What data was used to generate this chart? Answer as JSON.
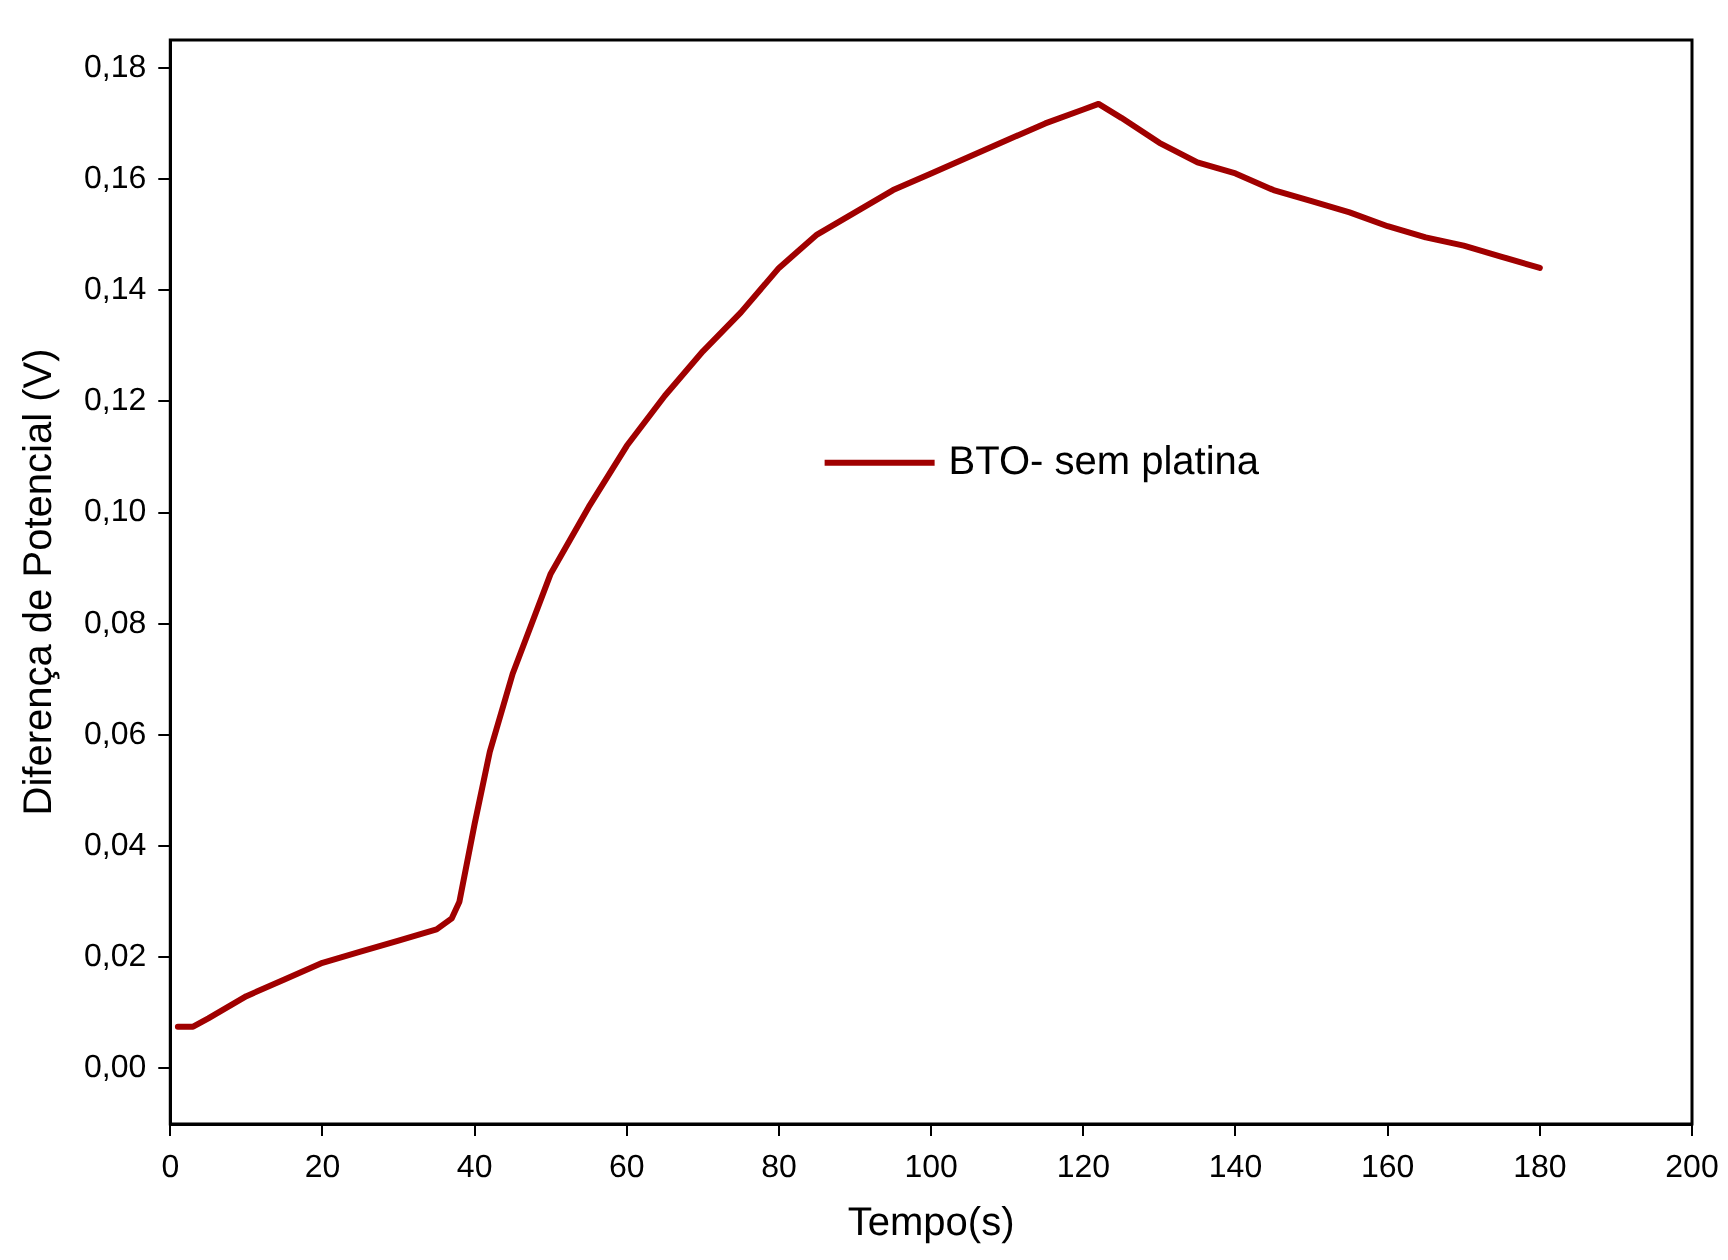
{
  "chart_data": {
    "type": "line",
    "xlabel": "Tempo(s)",
    "ylabel": "Diferença de Potencial (V)",
    "xlim": [
      0,
      200
    ],
    "xticks": [
      0,
      20,
      40,
      60,
      80,
      100,
      120,
      140,
      160,
      180,
      200
    ],
    "ylim": [
      -0.01,
      0.185
    ],
    "yticks": [
      {
        "value": 0,
        "label": "0,00"
      },
      {
        "value": 0.02,
        "label": "0,02"
      },
      {
        "value": 0.04,
        "label": "0,04"
      },
      {
        "value": 0.06,
        "label": "0,06"
      },
      {
        "value": 0.08,
        "label": "0,08"
      },
      {
        "value": 0.1,
        "label": "0,10"
      },
      {
        "value": 0.12,
        "label": "0,12"
      },
      {
        "value": 0.14,
        "label": "0,14"
      },
      {
        "value": 0.16,
        "label": "0,16"
      },
      {
        "value": 0.18,
        "label": "0,18"
      }
    ],
    "grid": false,
    "legend": "right",
    "marker": "none",
    "line_style": "solid",
    "x": [
      1,
      3,
      5,
      10,
      15,
      20,
      25,
      30,
      35,
      37,
      38,
      40,
      42,
      45,
      50,
      55,
      60,
      65,
      70,
      75,
      80,
      85,
      90,
      95,
      100,
      105,
      110,
      115,
      120,
      122,
      125,
      130,
      135,
      140,
      145,
      150,
      155,
      160,
      165,
      170,
      175,
      180
    ],
    "series": [
      {
        "name": "BTO- sem platina",
        "color": "#a00000",
        "values": [
          0.0075,
          0.0075,
          0.009,
          0.013,
          0.016,
          0.019,
          0.021,
          0.023,
          0.025,
          0.027,
          0.03,
          0.044,
          0.057,
          0.071,
          0.089,
          0.101,
          0.112,
          0.121,
          0.129,
          0.136,
          0.144,
          0.15,
          0.154,
          0.158,
          0.161,
          0.164,
          0.167,
          0.17,
          0.1725,
          0.1735,
          0.171,
          0.1665,
          0.163,
          0.161,
          0.158,
          0.156,
          0.154,
          0.1515,
          0.1495,
          0.148,
          0.146,
          0.144
        ]
      }
    ]
  }
}
